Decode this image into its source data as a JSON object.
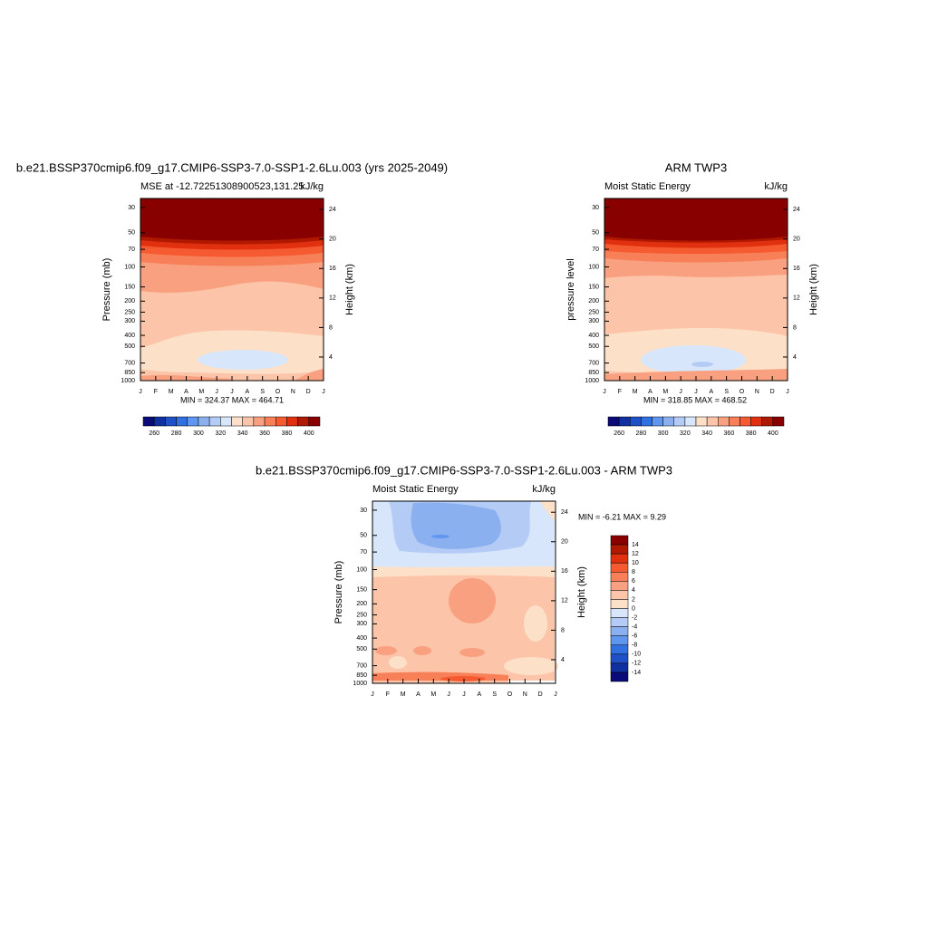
{
  "chart_data": [
    {
      "type": "contour",
      "title": "b.e21.BSSP370cmip6.f09_g17.CMIP6-SSP3-7.0-SSP1-2.6Lu.003 (yrs 2025-2049)",
      "subtitle_left": "MSE at -12.72251308900523,131.25",
      "subtitle_right": "kJ/kg",
      "ylabel": "Pressure (mb)",
      "y2label": "Height (km)",
      "yscale": "log",
      "ylim": [
        1000,
        25
      ],
      "yticks": [
        30,
        50,
        70,
        100,
        150,
        200,
        250,
        300,
        400,
        500,
        700,
        850,
        1000
      ],
      "y2lim": [
        0.8,
        25.5
      ],
      "y2ticks": [
        4,
        8,
        12,
        16,
        20,
        24
      ],
      "categories": [
        "J",
        "F",
        "M",
        "A",
        "M",
        "J",
        "J",
        "A",
        "S",
        "O",
        "N",
        "D",
        "J"
      ],
      "annotation": "MIN = 324.37 MAX = 464.71",
      "colorbar": {
        "orientation": "horizontal",
        "colors": [
          "#0a0a78",
          "#1030a0",
          "#2050c8",
          "#3070e0",
          "#5e96f0",
          "#8ab0f0",
          "#b4ccf5",
          "#d7e6fa",
          "#fde0c8",
          "#fcc4a8",
          "#f9a080",
          "#f88058",
          "#f55a30",
          "#e03010",
          "#b01800",
          "#880000"
        ],
        "ticks": [
          260,
          280,
          300,
          320,
          340,
          360,
          380,
          400
        ]
      }
    },
    {
      "type": "contour",
      "title": "ARM TWP3",
      "subtitle_left": "Moist Static Energy",
      "subtitle_right": "kJ/kg",
      "ylabel": "pressure level",
      "y2label": "Height (km)",
      "yscale": "log",
      "ylim": [
        1000,
        25
      ],
      "yticks": [
        30,
        50,
        70,
        100,
        150,
        200,
        250,
        300,
        400,
        500,
        700,
        850,
        1000
      ],
      "y2lim": [
        0.8,
        25.5
      ],
      "y2ticks": [
        4,
        8,
        12,
        16,
        20,
        24
      ],
      "categories": [
        "J",
        "F",
        "M",
        "A",
        "M",
        "J",
        "J",
        "A",
        "S",
        "O",
        "N",
        "D",
        "J"
      ],
      "annotation": "MIN = 318.85 MAX = 468.52",
      "colorbar": {
        "orientation": "horizontal",
        "colors": [
          "#0a0a78",
          "#1030a0",
          "#2050c8",
          "#3070e0",
          "#5e96f0",
          "#8ab0f0",
          "#b4ccf5",
          "#d7e6fa",
          "#fde0c8",
          "#fcc4a8",
          "#f9a080",
          "#f88058",
          "#f55a30",
          "#e03010",
          "#b01800",
          "#880000"
        ],
        "ticks": [
          260,
          280,
          300,
          320,
          340,
          360,
          380,
          400
        ]
      }
    },
    {
      "type": "contour",
      "title": "b.e21.BSSP370cmip6.f09_g17.CMIP6-SSP3-7.0-SSP1-2.6Lu.003 - ARM TWP3",
      "subtitle_left": "Moist Static Energy",
      "subtitle_right": "kJ/kg",
      "ylabel": "Pressure (mb)",
      "y2label": "Height (km)",
      "yscale": "log",
      "ylim": [
        1000,
        25
      ],
      "yticks": [
        30,
        50,
        70,
        100,
        150,
        200,
        250,
        300,
        400,
        500,
        700,
        850,
        1000
      ],
      "y2lim": [
        0.8,
        25.5
      ],
      "y2ticks": [
        4,
        8,
        12,
        16,
        20,
        24
      ],
      "categories": [
        "J",
        "F",
        "M",
        "A",
        "M",
        "J",
        "J",
        "A",
        "S",
        "O",
        "N",
        "D",
        "J"
      ],
      "annotation": "MIN =  -6.21 MAX =   9.29",
      "colorbar": {
        "orientation": "vertical",
        "colors": [
          "#880000",
          "#b01800",
          "#e03010",
          "#f55a30",
          "#f88058",
          "#f9a080",
          "#fcc4a8",
          "#fde0c8",
          "#d7e6fa",
          "#b4ccf5",
          "#8ab0f0",
          "#5e96f0",
          "#3070e0",
          "#2050c8",
          "#1030a0",
          "#0a0a78"
        ],
        "ticks": [
          14,
          12,
          10,
          8,
          6,
          4,
          2,
          0,
          -2,
          -4,
          -6,
          -8,
          -10,
          -12,
          -14
        ]
      }
    }
  ]
}
